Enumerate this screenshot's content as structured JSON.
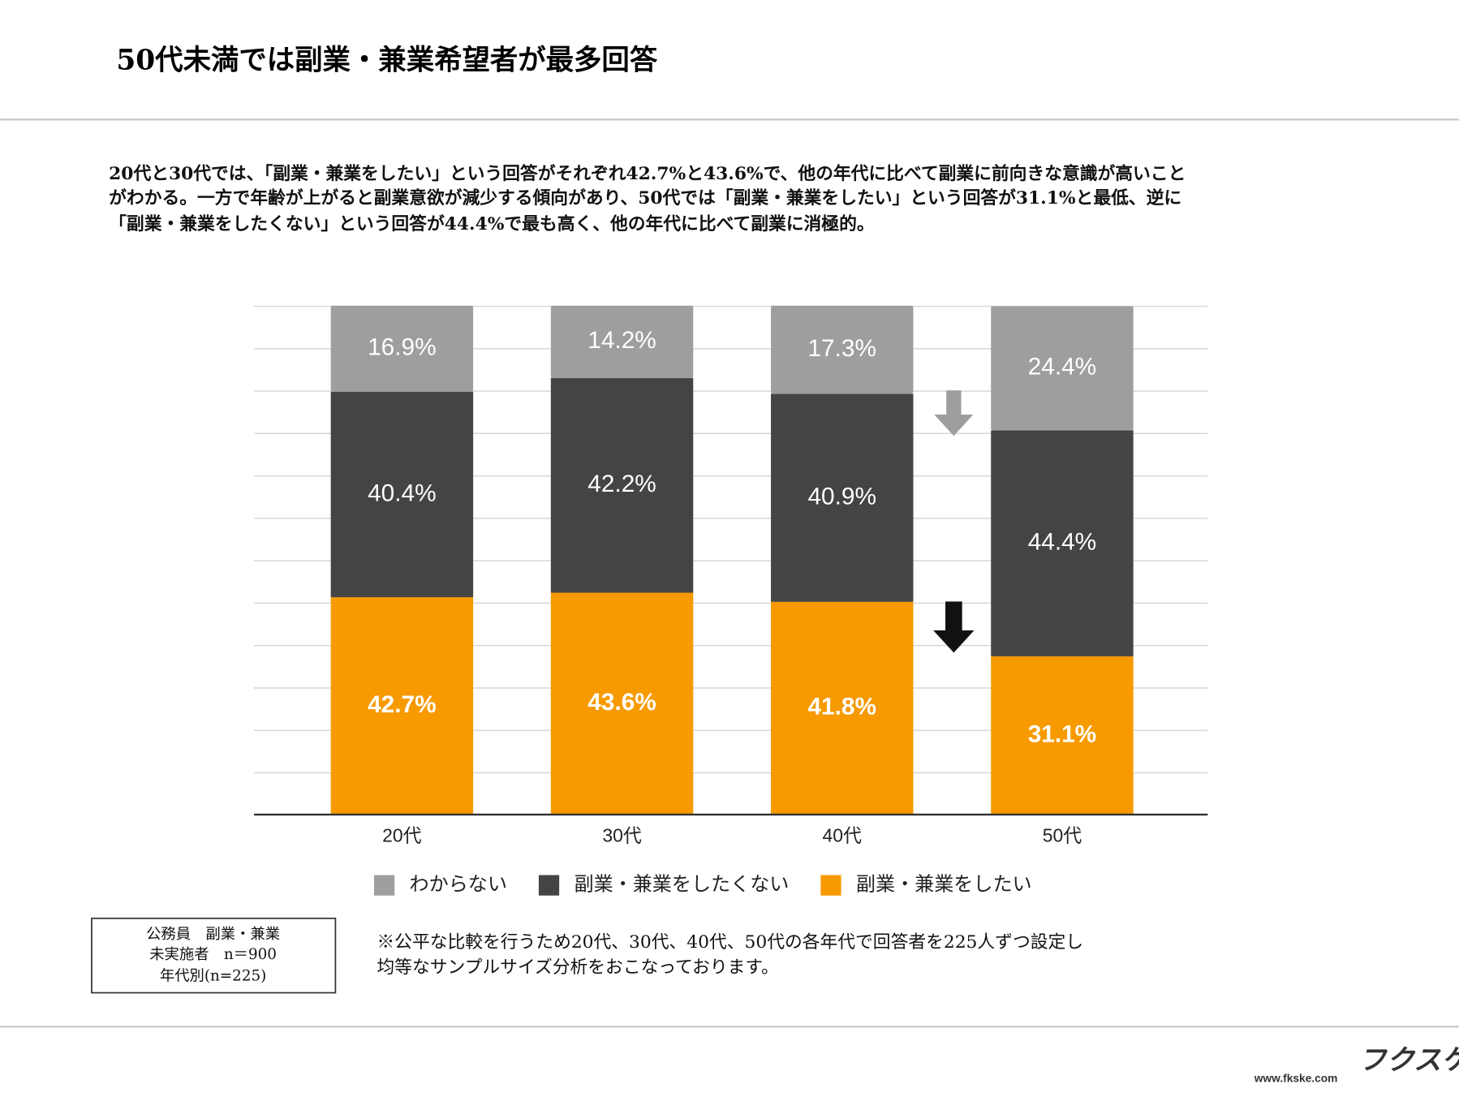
{
  "header": {
    "title": "50代未満では副業・兼業希望者が最多回答"
  },
  "body_lines": [
    "20代と30代では、「副業・兼業をしたい」という回答がそれぞれ42.7%と43.6%で、他の年代に比べて副業に前向きな意識が高いこと",
    "がわかる。一方で年齢が上がると副業意欲が減少する傾向があり、50代では「副業・兼業をしたい」という回答が31.1%と最低、逆に",
    "「副業・兼業をしたくない」という回答が44.4%で最も高く、他の年代に比べて副業に消極的。"
  ],
  "chart_data": {
    "type": "bar",
    "stacked": true,
    "categories": [
      "20代",
      "30代",
      "40代",
      "50代"
    ],
    "series": [
      {
        "name": "わからない",
        "color": "#9e9e9e",
        "values": [
          16.9,
          14.2,
          17.3,
          24.4
        ],
        "value_labels": [
          "16.9%",
          "14.2%",
          "17.3%",
          "24.4%"
        ]
      },
      {
        "name": "副業・兼業をしたくない",
        "color": "#444444",
        "values": [
          40.4,
          42.2,
          40.9,
          44.4
        ],
        "value_labels": [
          "40.4%",
          "42.2%",
          "40.9%",
          "44.4%"
        ]
      },
      {
        "name": "副業・兼業をしたい",
        "color": "#f79a00",
        "values": [
          42.7,
          43.6,
          41.8,
          31.1
        ],
        "value_labels": [
          "42.7%",
          "43.6%",
          "41.8%",
          "31.1%"
        ]
      }
    ],
    "ylim": [
      0,
      100
    ],
    "grid": true,
    "legend": "bottom"
  },
  "note_box": [
    "公務員　副業・兼業",
    "未実施者　n＝900",
    "年代別(n=225)"
  ],
  "note_lines": [
    "※公平な比較を行うため20代、30代、40代、50代の各年代で回答者を225人ずつ設定し",
    "均等なサンプルサイズ分析をおこなっております。"
  ],
  "footer": {
    "url": "www.fkske.com",
    "logo": "フクスケ"
  }
}
